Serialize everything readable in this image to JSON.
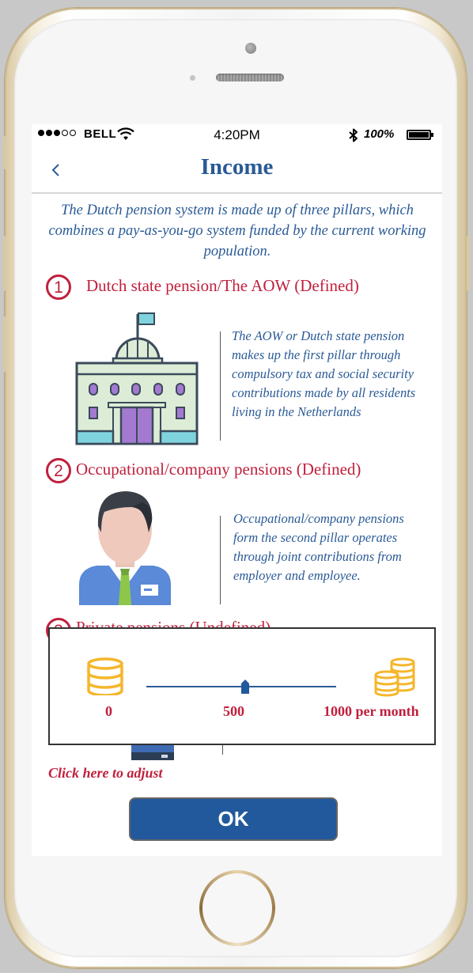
{
  "status_bar": {
    "carrier": "BELL",
    "time": "4:20PM",
    "battery": "100%"
  },
  "nav": {
    "title": "Income"
  },
  "intro": "The Dutch pension system is made up of three pillars, which combines a pay-as-you-go system funded by the current working population.",
  "pillars": [
    {
      "number": "1",
      "title": "Dutch state pension/The AOW  (Defined)",
      "description": "The AOW or Dutch state pension makes up the first pillar through compulsory tax and social security contributions made by all residents living in the Netherlands"
    },
    {
      "number": "2",
      "title": "Occupational/company pensions (Defined)",
      "description": "Occupational/company pensions form the second pillar operates through joint contributions from employer and employee."
    },
    {
      "number": "3",
      "title": "Private pensions (Undefined)"
    }
  ],
  "slider": {
    "min_label": "0",
    "mid_label": "500",
    "max_label": "1000 per month",
    "value": 500,
    "min": 0,
    "max": 1000
  },
  "adjust_link": "Click here to adjust",
  "ok_button": "OK",
  "colors": {
    "primary_blue": "#2a5a96",
    "accent_red": "#c0203e",
    "button_blue": "#22599c",
    "coin_yellow": "#f5b62b"
  }
}
